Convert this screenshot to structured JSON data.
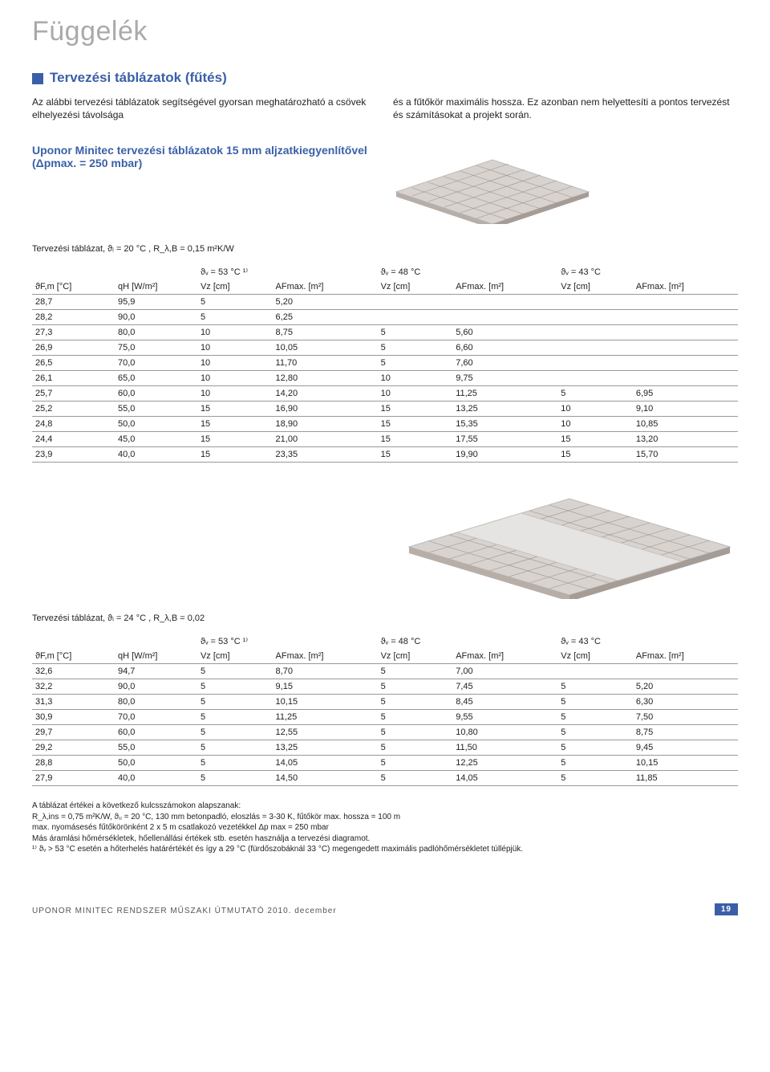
{
  "page_title": "Függelék",
  "section_heading": "Tervezési táblázatok (fűtés)",
  "intro_col1": "Az alábbi tervezési táblázatok segítségével gyorsan meghatározható a csövek elhelyezési távolsága",
  "intro_col2": "és a fűtőkör maximális hossza. Ez azonban nem helyettesíti a pontos tervezést és számításokat a projekt során.",
  "subheading": "Uponor Minitec tervezési táblázatok 15 mm aljzatkiegyenlítővel (Δpmax. = 250 mbar)",
  "table1": {
    "caption": "Tervezési táblázat, ϑᵢ = 20 °C , R_λ,B = 0,15 m²K/W",
    "theta": [
      "ϑᵥ = 53 °C ¹⁾",
      "ϑᵥ = 48 °C",
      "ϑᵥ = 43 °C"
    ],
    "cols": [
      "ϑF,m [°C]",
      "qH [W/m²]",
      "Vz [cm]",
      "AFmax. [m²]",
      "Vz [cm]",
      "AFmax. [m²]",
      "Vz [cm]",
      "AFmax. [m²]"
    ],
    "rows": [
      [
        "28,7",
        "95,9",
        "5",
        "5,20",
        "",
        "",
        "",
        ""
      ],
      [
        "28,2",
        "90,0",
        "5",
        "6,25",
        "",
        "",
        "",
        ""
      ],
      [
        "27,3",
        "80,0",
        "10",
        "8,75",
        "5",
        "5,60",
        "",
        ""
      ],
      [
        "26,9",
        "75,0",
        "10",
        "10,05",
        "5",
        "6,60",
        "",
        ""
      ],
      [
        "26,5",
        "70,0",
        "10",
        "11,70",
        "5",
        "7,60",
        "",
        ""
      ],
      [
        "26,1",
        "65,0",
        "10",
        "12,80",
        "10",
        "9,75",
        "",
        ""
      ],
      [
        "25,7",
        "60,0",
        "10",
        "14,20",
        "10",
        "11,25",
        "5",
        "6,95"
      ],
      [
        "25,2",
        "55,0",
        "15",
        "16,90",
        "15",
        "13,25",
        "10",
        "9,10"
      ],
      [
        "24,8",
        "50,0",
        "15",
        "18,90",
        "15",
        "15,35",
        "10",
        "10,85"
      ],
      [
        "24,4",
        "45,0",
        "15",
        "21,00",
        "15",
        "17,55",
        "15",
        "13,20"
      ],
      [
        "23,9",
        "40,0",
        "15",
        "23,35",
        "15",
        "19,90",
        "15",
        "15,70"
      ]
    ]
  },
  "table2": {
    "caption": "Tervezési táblázat, ϑᵢ = 24 °C , R_λ,B = 0,02",
    "theta": [
      "ϑᵥ = 53 °C ¹⁾",
      "ϑᵥ = 48 °C",
      "ϑᵥ = 43 °C"
    ],
    "cols": [
      "ϑF,m [°C]",
      "qH [W/m²]",
      "Vz [cm]",
      "AFmax. [m²]",
      "Vz [cm]",
      "AFmax. [m²]",
      "Vz [cm]",
      "AFmax. [m²]"
    ],
    "rows": [
      [
        "32,6",
        "94,7",
        "5",
        "8,70",
        "5",
        "7,00",
        "",
        ""
      ],
      [
        "32,2",
        "90,0",
        "5",
        "9,15",
        "5",
        "7,45",
        "5",
        "5,20"
      ],
      [
        "31,3",
        "80,0",
        "5",
        "10,15",
        "5",
        "8,45",
        "5",
        "6,30"
      ],
      [
        "30,9",
        "70,0",
        "5",
        "11,25",
        "5",
        "9,55",
        "5",
        "7,50"
      ],
      [
        "29,7",
        "60,0",
        "5",
        "12,55",
        "5",
        "10,80",
        "5",
        "8,75"
      ],
      [
        "29,2",
        "55,0",
        "5",
        "13,25",
        "5",
        "11,50",
        "5",
        "9,45"
      ],
      [
        "28,8",
        "50,0",
        "5",
        "14,05",
        "5",
        "12,25",
        "5",
        "10,15"
      ],
      [
        "27,9",
        "40,0",
        "5",
        "14,50",
        "5",
        "14,05",
        "5",
        "11,85"
      ]
    ]
  },
  "footnotes": [
    "A táblázat értékei a következő kulcsszámokon alapszanak:",
    "R_λ,ins = 0,75 m²K/W, ϑᵤ = 20 °C, 130 mm betonpadló, eloszlás = 3-30 K, fűtőkör max. hossza = 100 m",
    "max. nyomásesés fűtőkörönként 2 x 5 m csatlakozó vezetékkel Δp max = 250 mbar",
    "Más áramlási hőmérsékletek, hőellenállási értékek stb. esetén használja a tervezési diagramot.",
    "¹⁾ ϑᵥ > 53 °C esetén a hőterhelés határértékét és így a 29 °C (fürdőszobáknál 33 °C) megengedett maximális padlóhőmérsékletet túllépjük."
  ],
  "footer_left": "UPONOR MINITEC RENDSZER MŰSZAKI ÚTMUTATÓ 2010. december",
  "footer_page": "19",
  "colors": {
    "blue": "#3a5fa8",
    "title_grey": "#aaaaaa",
    "rule": "#999999"
  }
}
